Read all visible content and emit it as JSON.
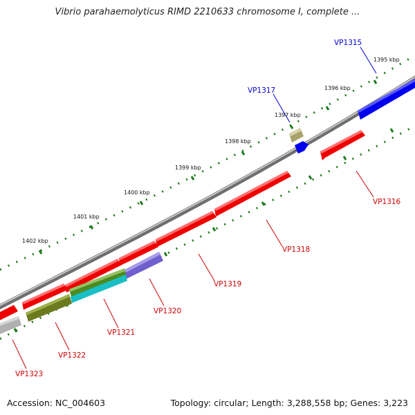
{
  "title": "Vibrio parahaemolyticus RIMD 2210633 chromosome I, complete ...",
  "footer": {
    "accession": "Accession: NC_004603",
    "summary": "Topology: circular; Length: 3,288,558 bp; Genes: 3,223"
  },
  "colors": {
    "backbone": "#888888",
    "tick": "#1a7a1a",
    "forward_gene": "#0000ff",
    "reverse_gene": "#ff0000",
    "label_forward": "#0000cc",
    "label_reverse": "#cc0000"
  },
  "ticks": [
    {
      "label": "1395 kbp"
    },
    {
      "label": "1396 kbp"
    },
    {
      "label": "1397 kbp"
    },
    {
      "label": "1398 kbp"
    },
    {
      "label": "1399 kbp"
    },
    {
      "label": "1400 kbp"
    },
    {
      "label": "1401 kbp"
    },
    {
      "label": "1402 kbp"
    }
  ],
  "genes": [
    {
      "label": "VP1315",
      "strand": "forward"
    },
    {
      "label": "VP1316",
      "strand": "reverse"
    },
    {
      "label": "VP1317",
      "strand": "forward"
    },
    {
      "label": "VP1318",
      "strand": "reverse"
    },
    {
      "label": "VP1319",
      "strand": "reverse"
    },
    {
      "label": "VP1320",
      "strand": "reverse"
    },
    {
      "label": "VP1321",
      "strand": "reverse"
    },
    {
      "label": "VP1322",
      "strand": "reverse"
    },
    {
      "label": "VP1323",
      "strand": "reverse"
    }
  ]
}
